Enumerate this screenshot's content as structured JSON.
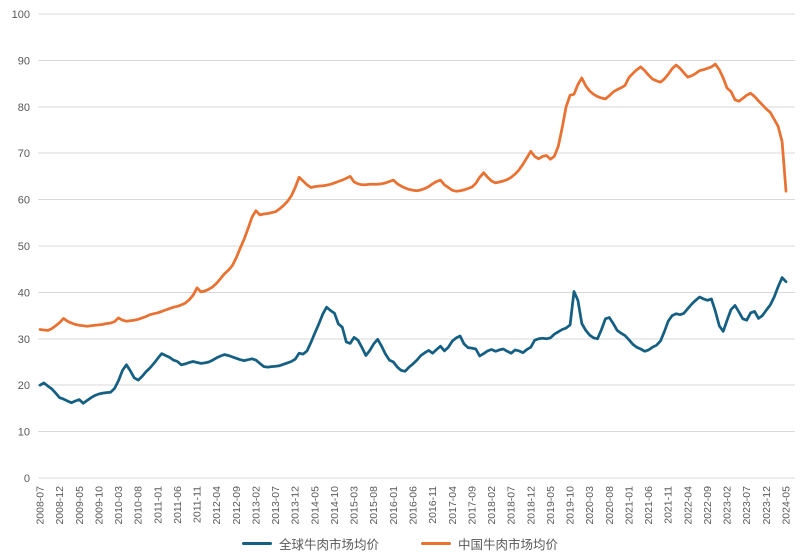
{
  "chart_data": {
    "type": "line",
    "title": "",
    "xlabel": "",
    "ylabel": "",
    "x_start": "2008-07",
    "x_end": "2024-05",
    "x_frequency": "monthly",
    "x_tick_interval_months": 5,
    "x_tick_labels": [
      "2008-07",
      "2008-12",
      "2009-05",
      "2009-10",
      "2010-03",
      "2010-08",
      "2011-01",
      "2011-06",
      "2011-11",
      "2012-04",
      "2012-09",
      "2013-02",
      "2013-07",
      "2013-12",
      "2014-05",
      "2014-10",
      "2015-03",
      "2015-08",
      "2016-01",
      "2016-06",
      "2016-11",
      "2017-04",
      "2017-09",
      "2018-02",
      "2018-07",
      "2018-12",
      "2019-05",
      "2019-10",
      "2020-03",
      "2020-08",
      "2021-01",
      "2021-06",
      "2021-11",
      "2022-04",
      "2022-09",
      "2023-02",
      "2023-07",
      "2023-12",
      "2024-05"
    ],
    "ylim": [
      0,
      100
    ],
    "y_ticks": [
      0,
      10,
      20,
      30,
      40,
      50,
      60,
      70,
      80,
      90,
      100
    ],
    "grid": "horizontal",
    "legend_position": "bottom",
    "colors": {
      "gridline": "#D9D9D9",
      "axis_text": "#595959",
      "background": "#FFFFFF"
    },
    "series": [
      {
        "key": "global",
        "name": "全球牛肉市场均价",
        "color": "#156082",
        "values": [
          20.0,
          20.5,
          19.8,
          19.2,
          18.3,
          17.3,
          17.0,
          16.6,
          16.2,
          16.6,
          16.9,
          16.1,
          16.7,
          17.3,
          17.8,
          18.1,
          18.3,
          18.4,
          18.5,
          19.3,
          21.0,
          23.2,
          24.4,
          23.1,
          21.6,
          21.1,
          21.9,
          22.9,
          23.7,
          24.7,
          25.8,
          26.8,
          26.4,
          26.0,
          25.4,
          25.1,
          24.4,
          24.6,
          24.9,
          25.1,
          24.9,
          24.7,
          24.8,
          25.0,
          25.4,
          25.9,
          26.3,
          26.6,
          26.4,
          26.1,
          25.8,
          25.5,
          25.3,
          25.5,
          25.7,
          25.4,
          24.7,
          24.0,
          23.9,
          24.0,
          24.1,
          24.2,
          24.5,
          24.8,
          25.1,
          25.6,
          26.9,
          26.7,
          27.4,
          29.2,
          31.2,
          33.2,
          35.3,
          36.8,
          36.1,
          35.5,
          33.2,
          32.5,
          29.3,
          29.0,
          30.3,
          29.7,
          28.1,
          26.4,
          27.5,
          28.9,
          29.9,
          28.4,
          26.7,
          25.4,
          25.0,
          23.9,
          23.2,
          23.0,
          23.9,
          24.6,
          25.4,
          26.4,
          27.0,
          27.5,
          26.9,
          27.7,
          28.4,
          27.4,
          28.2,
          29.5,
          30.2,
          30.6,
          28.9,
          28.1,
          28.0,
          27.8,
          26.3,
          26.8,
          27.4,
          27.7,
          27.3,
          27.6,
          27.8,
          27.3,
          26.9,
          27.6,
          27.4,
          27.0,
          27.7,
          28.2,
          29.7,
          30.0,
          30.1,
          30.0,
          30.2,
          31.0,
          31.5,
          32.0,
          32.3,
          33.0,
          40.2,
          38.3,
          33.3,
          31.8,
          30.8,
          30.2,
          30.0,
          32.0,
          34.3,
          34.6,
          33.3,
          31.8,
          31.2,
          30.7,
          29.8,
          28.8,
          28.2,
          27.8,
          27.3,
          27.6,
          28.2,
          28.6,
          29.5,
          31.5,
          33.8,
          35.0,
          35.4,
          35.2,
          35.5,
          36.5,
          37.5,
          38.3,
          39.0,
          38.6,
          38.3,
          38.6,
          36.0,
          32.8,
          31.6,
          34.0,
          36.3,
          37.2,
          35.8,
          34.3,
          34.0,
          35.6,
          35.9,
          34.4,
          35.0,
          36.2,
          37.3,
          39.0,
          41.2,
          43.2,
          42.3
        ]
      },
      {
        "key": "china",
        "name": "中国牛肉市场均价",
        "color": "#E97132",
        "values": [
          32.0,
          31.9,
          31.8,
          32.2,
          32.8,
          33.5,
          34.4,
          33.8,
          33.4,
          33.1,
          32.9,
          32.8,
          32.7,
          32.8,
          32.9,
          33.0,
          33.1,
          33.3,
          33.4,
          33.7,
          34.5,
          34.0,
          33.8,
          33.9,
          34.0,
          34.2,
          34.5,
          34.8,
          35.2,
          35.4,
          35.6,
          35.9,
          36.2,
          36.5,
          36.8,
          37.0,
          37.3,
          37.7,
          38.4,
          39.4,
          41.0,
          40.1,
          40.3,
          40.7,
          41.2,
          42.0,
          43.0,
          44.0,
          44.8,
          45.8,
          47.5,
          49.5,
          51.5,
          53.8,
          56.2,
          57.6,
          56.7,
          56.9,
          57.0,
          57.2,
          57.4,
          58.0,
          58.7,
          59.6,
          60.8,
          62.6,
          64.8,
          64.0,
          63.2,
          62.6,
          62.8,
          62.9,
          63.0,
          63.1,
          63.3,
          63.6,
          63.9,
          64.2,
          64.6,
          65.0,
          63.8,
          63.4,
          63.2,
          63.2,
          63.3,
          63.3,
          63.3,
          63.4,
          63.6,
          63.9,
          64.2,
          63.4,
          62.9,
          62.5,
          62.2,
          62.0,
          61.9,
          62.1,
          62.4,
          62.8,
          63.4,
          63.9,
          64.2,
          63.2,
          62.6,
          62.0,
          61.8,
          61.9,
          62.1,
          62.4,
          62.7,
          63.5,
          64.8,
          65.8,
          64.8,
          64.0,
          63.6,
          63.8,
          64.0,
          64.3,
          64.8,
          65.5,
          66.4,
          67.6,
          69.0,
          70.4,
          69.3,
          68.8,
          69.3,
          69.5,
          68.7,
          69.3,
          71.5,
          75.5,
          80.0,
          82.5,
          82.7,
          84.8,
          86.2,
          84.5,
          83.4,
          82.7,
          82.2,
          81.9,
          81.7,
          82.4,
          83.2,
          83.7,
          84.1,
          84.6,
          86.3,
          87.2,
          88.0,
          88.6,
          87.8,
          86.8,
          86.0,
          85.6,
          85.3,
          86.0,
          87.0,
          88.2,
          89.0,
          88.3,
          87.3,
          86.4,
          86.7,
          87.2,
          87.8,
          88.0,
          88.3,
          88.6,
          89.2,
          88.0,
          86.2,
          84.0,
          83.3,
          81.5,
          81.2,
          81.8,
          82.5,
          82.9,
          82.2,
          81.3,
          80.4,
          79.5,
          78.8,
          77.3,
          75.8,
          72.5,
          61.8
        ]
      }
    ]
  }
}
